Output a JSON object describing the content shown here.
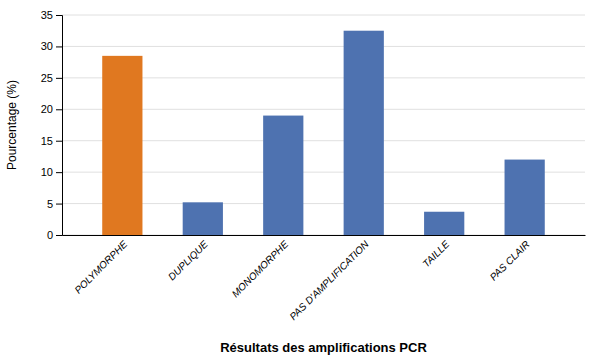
{
  "chart_data": {
    "type": "bar",
    "xlabel": "Résultats des amplifications  PCR",
    "ylabel": "Pourcentage (%)",
    "categories": [
      "POLYMORPHE",
      "DUPLIQUE",
      "MONOMORPHE",
      "PAS D'AMPLIFICATION",
      "TAILLE",
      "PAS CLAIR"
    ],
    "values": [
      28.5,
      5.2,
      19.0,
      32.5,
      3.7,
      12.0
    ],
    "colors": [
      "#E07820",
      "#4E72B0",
      "#4E72B0",
      "#4E72B0",
      "#4E72B0",
      "#4E72B0"
    ],
    "ylim": [
      0,
      35
    ],
    "yticks": [
      0,
      5,
      10,
      15,
      20,
      25,
      30,
      35
    ],
    "grid": true
  }
}
